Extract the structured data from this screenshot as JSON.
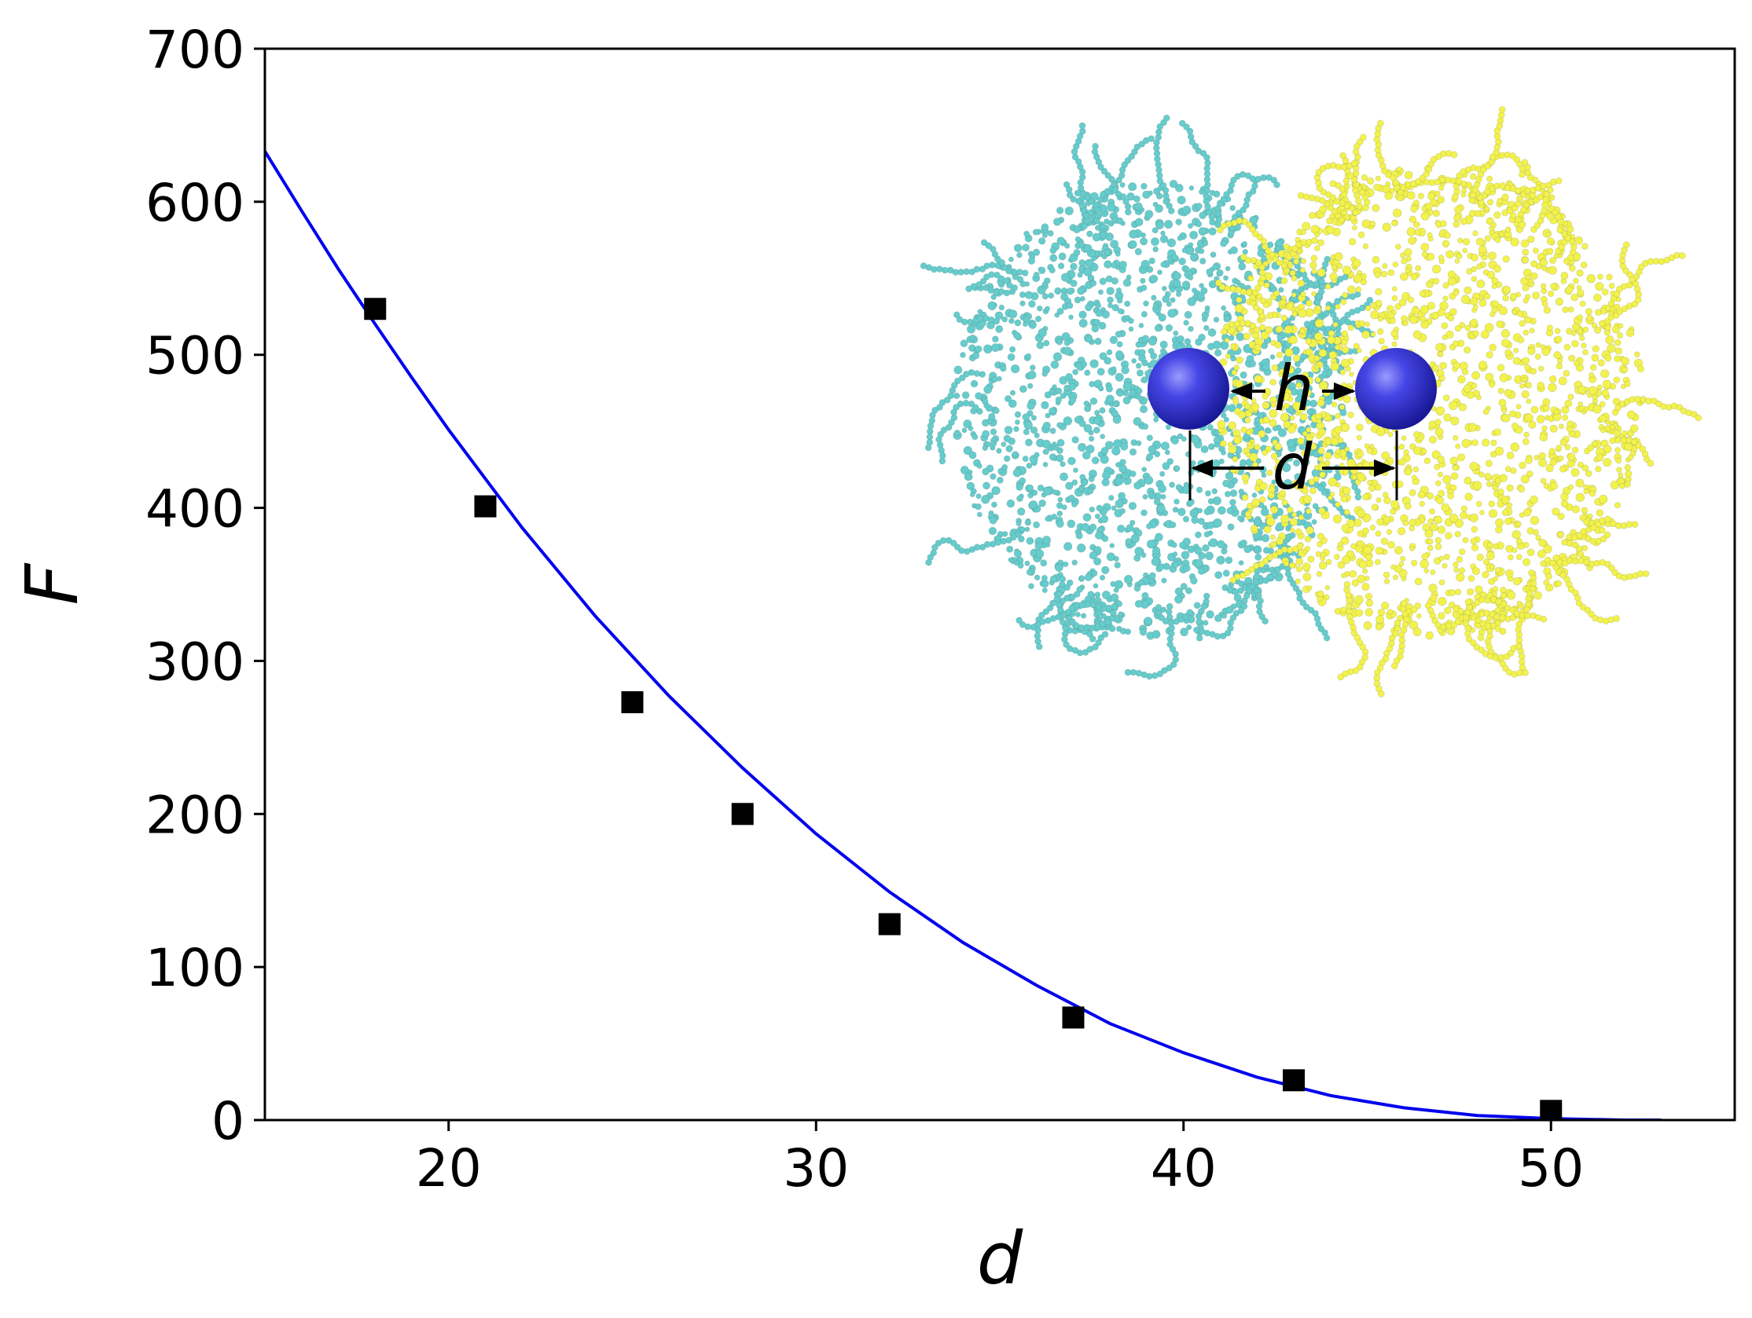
{
  "chart_data": {
    "type": "scatter",
    "title": "",
    "xlabel": "d",
    "ylabel": "F",
    "xlim": [
      15,
      55
    ],
    "ylim": [
      0,
      700
    ],
    "x_ticks": [
      20,
      30,
      40,
      50
    ],
    "y_ticks": [
      0,
      100,
      200,
      300,
      400,
      500,
      600,
      700
    ],
    "grid": false,
    "legend": "none",
    "series": [
      {
        "kind": "markers",
        "marker": "square",
        "color": "#000000",
        "x": [
          18,
          21,
          25,
          28,
          32,
          37,
          43,
          50
        ],
        "y": [
          530,
          401,
          273,
          200,
          128,
          67,
          26,
          6
        ]
      },
      {
        "kind": "fit-line",
        "color": "#0000ee",
        "x": [
          15,
          16,
          17,
          18,
          19,
          20,
          22,
          24,
          26,
          28,
          30,
          32,
          34,
          36,
          38,
          40,
          42,
          44,
          46,
          48,
          50,
          52,
          53
        ],
        "y": [
          633,
          594,
          556,
          520,
          485,
          451,
          387,
          329,
          277,
          230,
          187,
          149,
          116,
          88,
          63,
          44,
          28,
          16,
          8,
          3,
          1,
          0,
          0
        ]
      }
    ],
    "inset": {
      "description_colors": {
        "left_cluster": "#66cccc",
        "right_cluster": "#f2f24d",
        "spheres": "#3333dd"
      },
      "labels": {
        "gap": "h",
        "center_distance": "d"
      }
    }
  }
}
